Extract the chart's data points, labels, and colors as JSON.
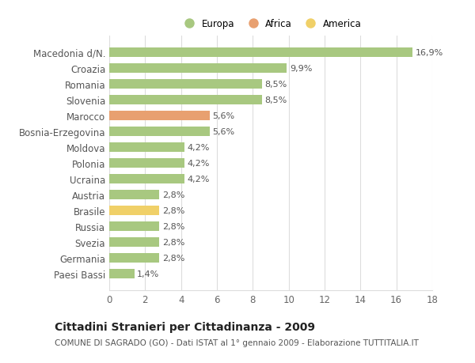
{
  "categories": [
    "Macedonia d/N.",
    "Croazia",
    "Romania",
    "Slovenia",
    "Marocco",
    "Bosnia-Erzegovina",
    "Moldova",
    "Polonia",
    "Ucraina",
    "Austria",
    "Brasile",
    "Russia",
    "Svezia",
    "Germania",
    "Paesi Bassi"
  ],
  "values": [
    16.9,
    9.9,
    8.5,
    8.5,
    5.6,
    5.6,
    4.2,
    4.2,
    4.2,
    2.8,
    2.8,
    2.8,
    2.8,
    2.8,
    1.4
  ],
  "bar_colors": [
    "#a8c880",
    "#a8c880",
    "#a8c880",
    "#a8c880",
    "#e8a070",
    "#a8c880",
    "#a8c880",
    "#a8c880",
    "#a8c880",
    "#a8c880",
    "#f0d068",
    "#a8c880",
    "#a8c880",
    "#a8c880",
    "#a8c880"
  ],
  "labels": [
    "16,9%",
    "9,9%",
    "8,5%",
    "8,5%",
    "5,6%",
    "5,6%",
    "4,2%",
    "4,2%",
    "4,2%",
    "2,8%",
    "2,8%",
    "2,8%",
    "2,8%",
    "2,8%",
    "1,4%"
  ],
  "xlim": [
    0,
    18
  ],
  "xticks": [
    0,
    2,
    4,
    6,
    8,
    10,
    12,
    14,
    16,
    18
  ],
  "legend_labels": [
    "Europa",
    "Africa",
    "America"
  ],
  "legend_colors": [
    "#a8c880",
    "#e8a070",
    "#f0d068"
  ],
  "title": "Cittadini Stranieri per Cittadinanza - 2009",
  "subtitle": "COMUNE DI SAGRADO (GO) - Dati ISTAT al 1° gennaio 2009 - Elaborazione TUTTITALIA.IT",
  "background_color": "#ffffff",
  "grid_color": "#dddddd",
  "bar_height": 0.62,
  "value_label_fontsize": 8,
  "category_fontsize": 8.5,
  "title_fontsize": 10,
  "subtitle_fontsize": 7.5
}
